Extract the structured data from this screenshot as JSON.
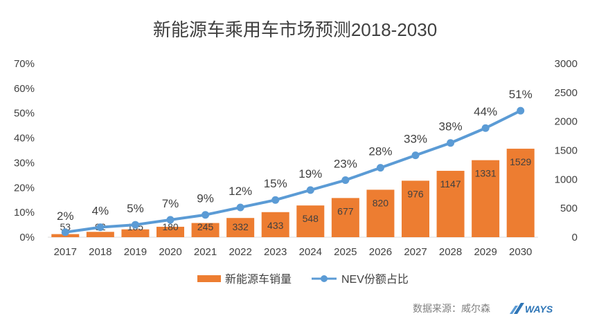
{
  "chart_data": {
    "type": "bar+line",
    "title": "新能源车乘用车市场预测2018-2030",
    "categories": [
      "2017",
      "2018",
      "2019",
      "2020",
      "2021",
      "2022",
      "2023",
      "2024",
      "2025",
      "2026",
      "2027",
      "2028",
      "2029",
      "2030"
    ],
    "series": [
      {
        "name": "新能源车销量",
        "type": "bar",
        "axis": "right",
        "color": "#ed7d31",
        "values": [
          53,
          92,
          135,
          180,
          245,
          332,
          433,
          548,
          677,
          820,
          976,
          1147,
          1331,
          1529
        ]
      },
      {
        "name": "NEV份额占比",
        "type": "line",
        "axis": "left",
        "color": "#5b9bd5",
        "values": [
          0.02,
          0.04,
          0.05,
          0.07,
          0.09,
          0.12,
          0.15,
          0.19,
          0.23,
          0.28,
          0.33,
          0.38,
          0.44,
          0.51
        ],
        "labels": [
          "2%",
          "4%",
          "5%",
          "7%",
          "9%",
          "12%",
          "15%",
          "19%",
          "23%",
          "28%",
          "33%",
          "38%",
          "44%",
          "51%"
        ]
      }
    ],
    "left_axis": {
      "min": 0,
      "max": 0.7,
      "ticks": [
        "0%",
        "10%",
        "20%",
        "30%",
        "40%",
        "50%",
        "60%",
        "70%"
      ]
    },
    "right_axis": {
      "min": 0,
      "max": 3000,
      "ticks": [
        "0",
        "500",
        "1000",
        "1500",
        "2000",
        "2500",
        "3000"
      ]
    },
    "grid": false,
    "legend_position": "bottom"
  },
  "footer": {
    "source": "数据来源：威尔森",
    "logo_text": "WAYS"
  }
}
